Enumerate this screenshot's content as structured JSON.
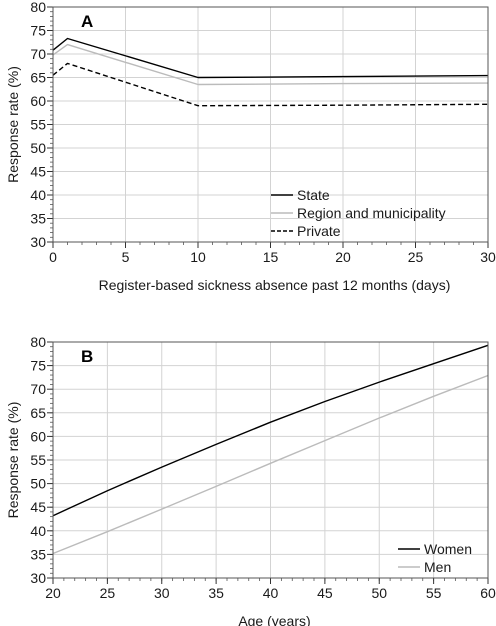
{
  "chart_data": [
    {
      "type": "line",
      "panel_label": "A",
      "xlabel": "Register-based sickness absence past 12 months (days)",
      "ylabel": "Response rate (%)",
      "xlim": [
        0,
        30
      ],
      "ylim": [
        30,
        80
      ],
      "xticks": [
        0,
        5,
        10,
        15,
        20,
        25,
        30
      ],
      "yticks": [
        30,
        35,
        40,
        45,
        50,
        55,
        60,
        65,
        70,
        75,
        80
      ],
      "grid": true,
      "legend_position": "bottom-right",
      "series": [
        {
          "name": "State",
          "color": "#000000",
          "dash": "solid",
          "x": [
            0,
            1,
            10,
            20,
            30
          ],
          "y": [
            70.8,
            73.3,
            65.0,
            65.2,
            65.4
          ]
        },
        {
          "name": "Region and municipality",
          "color": "#bbbbbb",
          "dash": "solid",
          "x": [
            0,
            1,
            10,
            20,
            30
          ],
          "y": [
            69.8,
            72.0,
            63.5,
            63.7,
            63.8
          ]
        },
        {
          "name": "Private",
          "color": "#000000",
          "dash": "dashed",
          "x": [
            0,
            1,
            10,
            20,
            30
          ],
          "y": [
            65.5,
            68.0,
            59.0,
            59.1,
            59.3
          ]
        }
      ]
    },
    {
      "type": "line",
      "panel_label": "B",
      "xlabel": "Age (years)",
      "ylabel": "Response rate (%)",
      "xlim": [
        20,
        60
      ],
      "ylim": [
        30,
        80
      ],
      "xticks": [
        20,
        25,
        30,
        35,
        40,
        45,
        50,
        55,
        60
      ],
      "yticks": [
        30,
        35,
        40,
        45,
        50,
        55,
        60,
        65,
        70,
        75,
        80
      ],
      "grid": true,
      "legend_position": "bottom-right",
      "series": [
        {
          "name": "Women",
          "color": "#000000",
          "dash": "solid",
          "x": [
            20,
            25,
            30,
            35,
            40,
            45,
            50,
            55,
            60
          ],
          "y": [
            43.2,
            48.5,
            53.5,
            58.3,
            63.0,
            67.4,
            71.5,
            75.4,
            79.3
          ]
        },
        {
          "name": "Men",
          "color": "#bbbbbb",
          "dash": "solid",
          "x": [
            20,
            25,
            30,
            35,
            40,
            45,
            50,
            55,
            60
          ],
          "y": [
            35.2,
            39.8,
            44.6,
            49.4,
            54.3,
            59.1,
            63.9,
            68.5,
            72.9
          ]
        }
      ]
    }
  ]
}
